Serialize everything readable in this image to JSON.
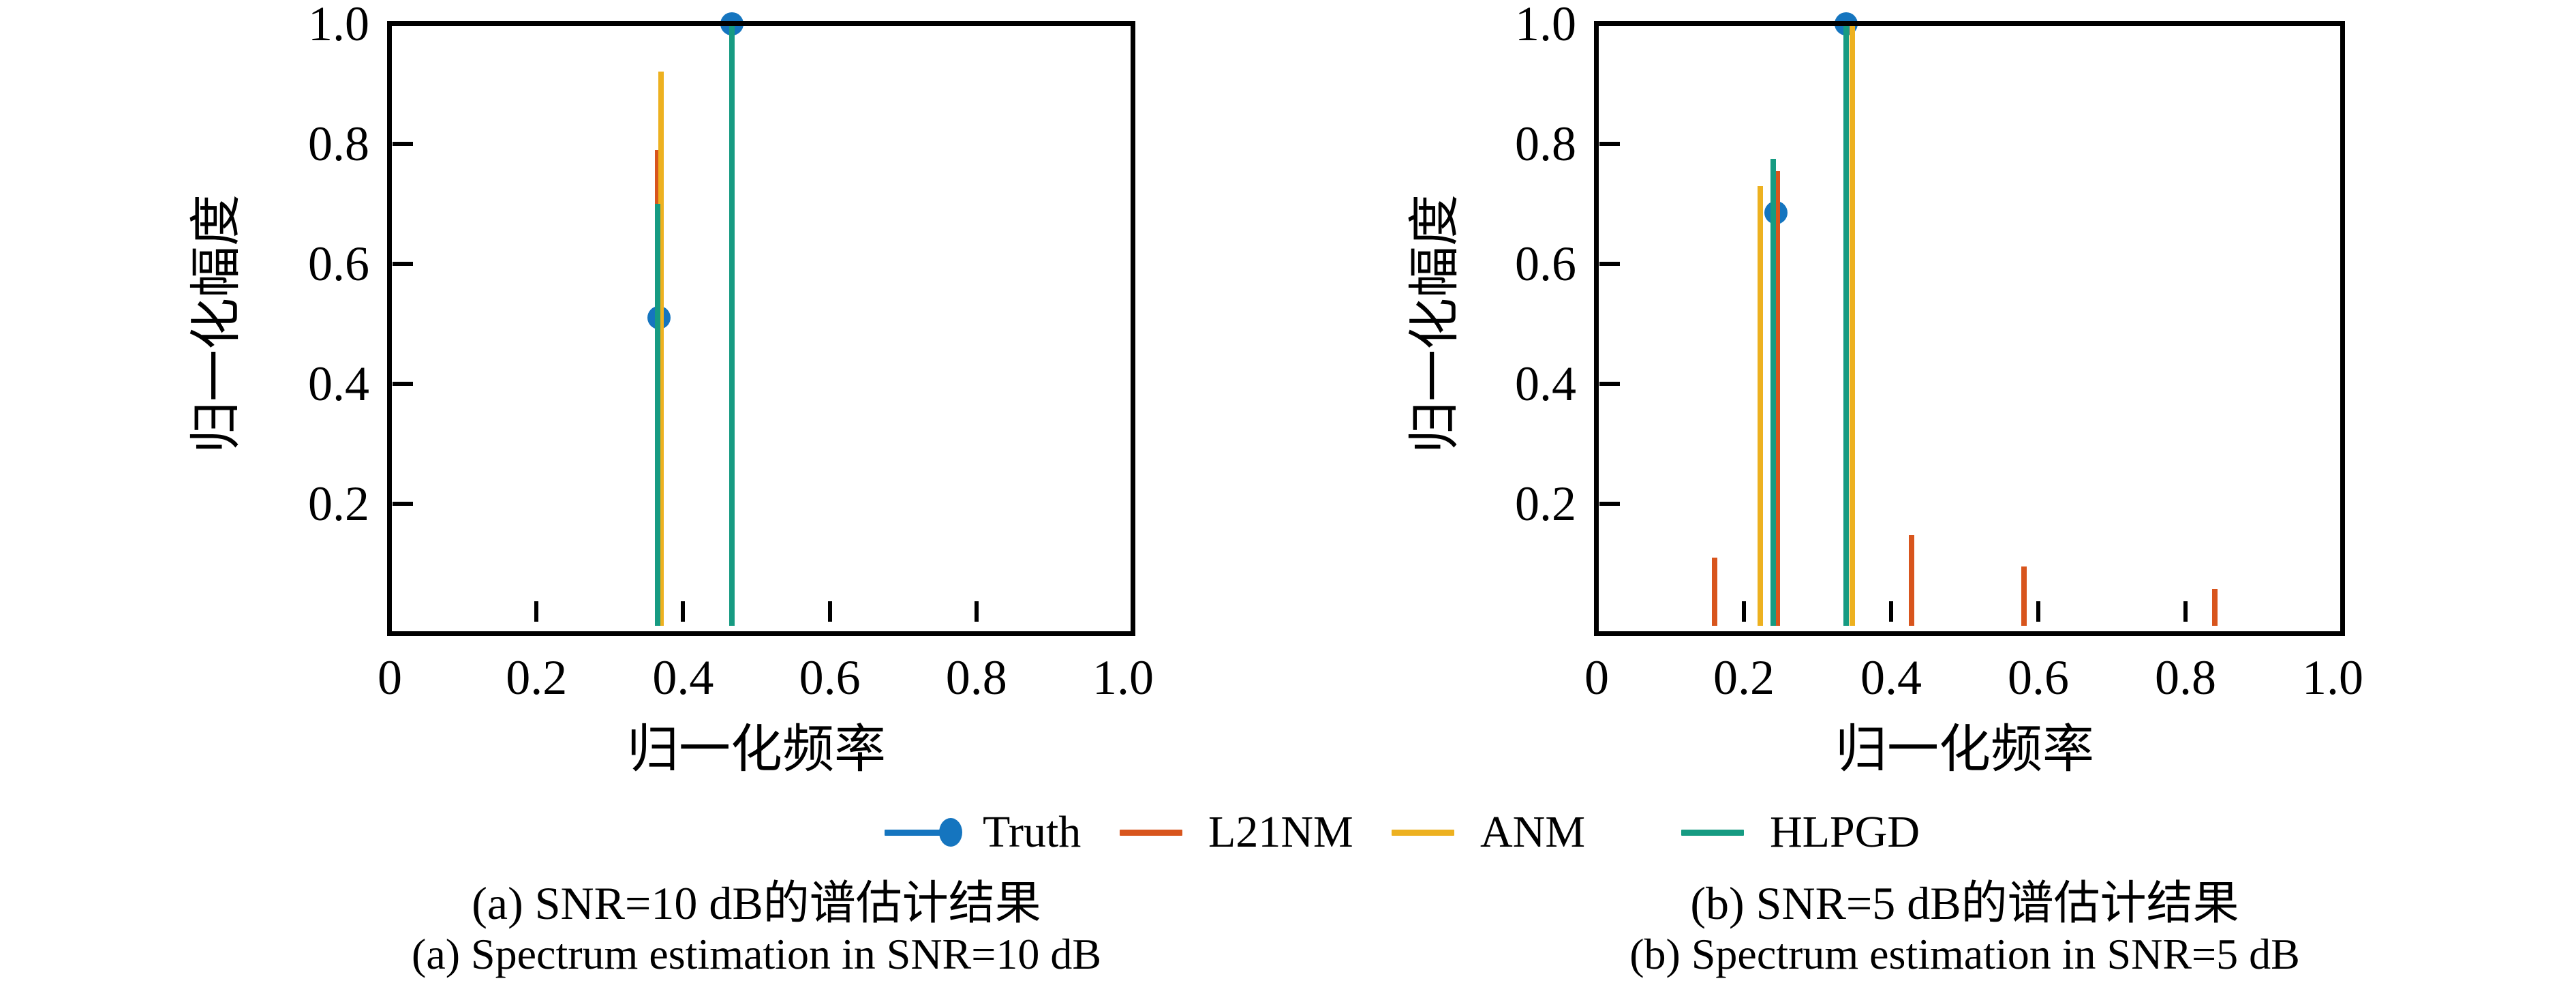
{
  "colors": {
    "truth": "#1575bf",
    "l21nm": "#d8551d",
    "anm": "#edb120",
    "hlpgd": "#169b82",
    "axis": "#000000",
    "background": "#ffffff"
  },
  "legend": {
    "items": [
      {
        "label": "Truth",
        "series_key": "truth",
        "color": "#1575bf",
        "marker": true
      },
      {
        "label": "L21NM",
        "series_key": "l21nm",
        "color": "#d8551d",
        "marker": false
      },
      {
        "label": "ANM",
        "series_key": "anm",
        "color": "#edb120",
        "marker": false
      },
      {
        "label": "HLPGD",
        "series_key": "hlpgd",
        "color": "#169b82",
        "marker": false
      }
    ]
  },
  "chart_data": [
    {
      "type": "stem",
      "title_zh": "(a) SNR=10 dB的谱估计结果",
      "title_en": "(a) Spectrum estimation in SNR=10 dB",
      "xlabel": "归一化频率",
      "ylabel": "归一化幅度",
      "xlim": [
        0,
        1.0
      ],
      "ylim": [
        0,
        1.0
      ],
      "xticks": [
        0,
        0.2,
        0.4,
        0.6,
        0.8,
        1.0
      ],
      "xtick_labels": [
        "0",
        "0.2",
        "0.4",
        "0.6",
        "0.8",
        "1.0"
      ],
      "yticks": [
        0.2,
        0.4,
        0.6,
        0.8,
        1.0
      ],
      "ytick_labels": [
        "0.2",
        "0.4",
        "0.6",
        "0.8",
        "1.0"
      ],
      "grid": false,
      "legend_position": "below-figure",
      "series": [
        {
          "name": "Truth",
          "key": "truth",
          "color": "#1575bf",
          "marker": true,
          "points": [
            [
              0.367,
              0.51
            ],
            [
              0.467,
              1.0
            ]
          ]
        },
        {
          "name": "L21NM",
          "key": "l21nm",
          "color": "#d8551d",
          "marker": false,
          "points": [
            [
              0.365,
              0.79
            ]
          ]
        },
        {
          "name": "ANM",
          "key": "anm",
          "color": "#edb120",
          "marker": false,
          "points": [
            [
              0.37,
              0.92
            ]
          ]
        },
        {
          "name": "HLPGD",
          "key": "hlpgd",
          "color": "#169b82",
          "marker": false,
          "points": [
            [
              0.365,
              0.7
            ],
            [
              0.467,
              1.0
            ]
          ]
        }
      ]
    },
    {
      "type": "stem",
      "title_zh": "(b) SNR=5 dB的谱估计结果",
      "title_en": "(b) Spectrum estimation in SNR=5 dB",
      "xlabel": "归一化频率",
      "ylabel": "归一化幅度",
      "xlim": [
        0,
        1.0
      ],
      "ylim": [
        0,
        1.0
      ],
      "xticks": [
        0,
        0.2,
        0.4,
        0.6,
        0.8,
        1.0
      ],
      "xtick_labels": [
        "0",
        "0.2",
        "0.4",
        "0.6",
        "0.8",
        "1.0"
      ],
      "yticks": [
        0.2,
        0.4,
        0.6,
        0.8,
        1.0
      ],
      "ytick_labels": [
        "0.2",
        "0.4",
        "0.6",
        "0.8",
        "1.0"
      ],
      "grid": false,
      "legend_position": "below-figure",
      "series": [
        {
          "name": "Truth",
          "key": "truth",
          "color": "#1575bf",
          "marker": true,
          "points": [
            [
              0.2435,
              0.685
            ],
            [
              0.339,
              1.0
            ]
          ]
        },
        {
          "name": "L21NM",
          "key": "l21nm",
          "color": "#d8551d",
          "marker": false,
          "points": [
            [
              0.16,
              0.11
            ],
            [
              0.2455,
              0.755
            ],
            [
              0.428,
              0.148
            ],
            [
              0.581,
              0.095
            ],
            [
              0.84,
              0.058
            ]
          ]
        },
        {
          "name": "ANM",
          "key": "anm",
          "color": "#edb120",
          "marker": false,
          "points": [
            [
              0.222,
              0.73
            ],
            [
              0.347,
              1.0
            ]
          ]
        },
        {
          "name": "HLPGD",
          "key": "hlpgd",
          "color": "#169b82",
          "marker": false,
          "points": [
            [
              0.24,
              0.775
            ],
            [
              0.339,
              1.0
            ]
          ]
        }
      ]
    }
  ]
}
